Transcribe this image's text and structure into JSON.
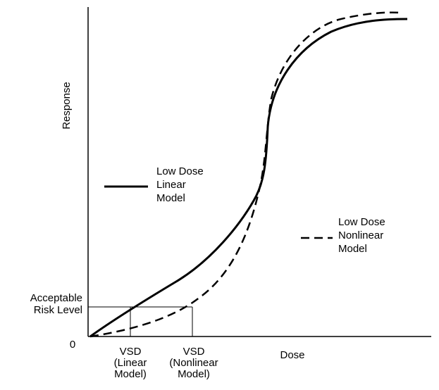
{
  "y_axis_label": "Response",
  "x_axis_label": "Dose",
  "origin_label": "0",
  "threshold_label_lines": [
    "Acceptable",
    "Risk Level"
  ],
  "x_markers": [
    {
      "label_lines": [
        "VSD",
        "(Linear",
        "Model)"
      ]
    },
    {
      "label_lines": [
        "VSD",
        "(Nonlinear",
        "Model)"
      ]
    }
  ],
  "legend": [
    {
      "label_lines": [
        "Low Dose",
        "Linear",
        "Model"
      ]
    },
    {
      "label_lines": [
        "Low Dose",
        "Nonlinear",
        "Model"
      ]
    }
  ]
}
